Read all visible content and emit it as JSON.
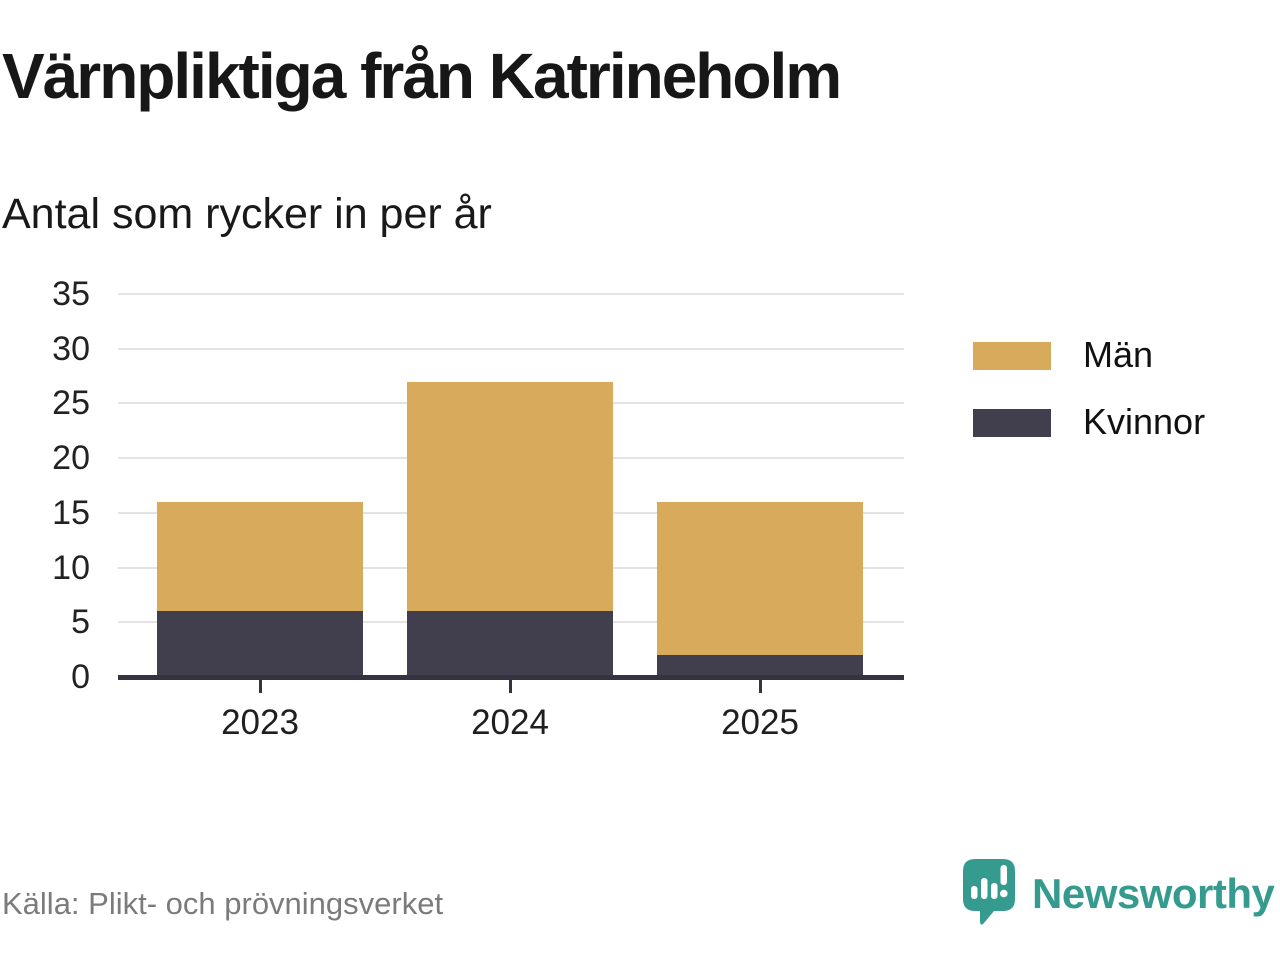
{
  "branding": {
    "name": "Newsworthy"
  },
  "chart_data": {
    "type": "bar",
    "stacked": true,
    "title": "Värnpliktiga från Katrineholm",
    "subtitle": "Antal som rycker in per år",
    "source": "Källa: Plikt- och prövningsverket",
    "categories": [
      "2023",
      "2024",
      "2025"
    ],
    "series": [
      {
        "name": "Män",
        "color": "#d7ab5b",
        "values": [
          10,
          21,
          14
        ]
      },
      {
        "name": "Kvinnor",
        "color": "#413f4d",
        "values": [
          6,
          6,
          2
        ]
      }
    ],
    "stack_order_bottom_first": [
      "Kvinnor",
      "Män"
    ],
    "totals": [
      16,
      27,
      16
    ],
    "ylabel": "",
    "xlabel": "",
    "ylim": [
      0,
      35
    ],
    "yticks": [
      0,
      5,
      10,
      15,
      20,
      25,
      30,
      35
    ],
    "grid": true,
    "legend_position": "right",
    "colors": {
      "grid": "#e3e3e3",
      "axis": "#35333f",
      "text": "#191919",
      "source_text": "#7b7b7b",
      "brand_teal": "#369b8f"
    }
  }
}
